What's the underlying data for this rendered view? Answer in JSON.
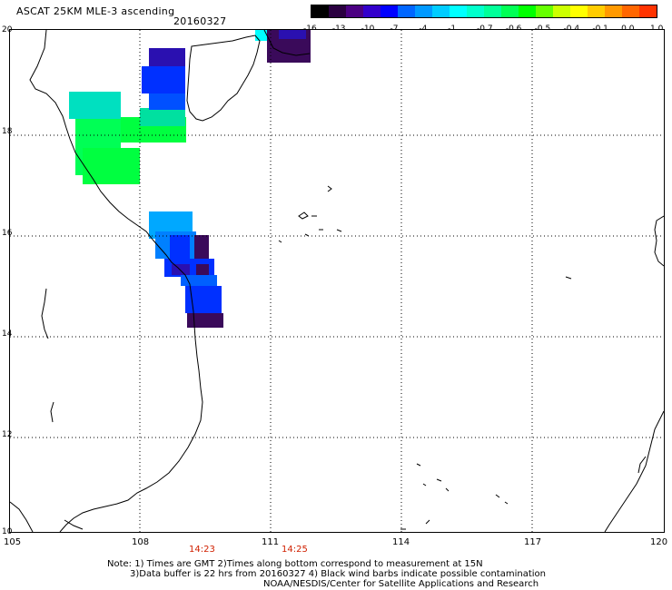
{
  "header": {
    "title": "ASCAT 25KM MLE-3 ascending",
    "date": "20160327"
  },
  "colorbar": {
    "labels": [
      "-16",
      "-13",
      "-10",
      "-7",
      "-4",
      "-1",
      "-0.7",
      "-0.6",
      "-0.5",
      "-0.4",
      "-0.1",
      "0.0",
      "1.0"
    ],
    "colors": [
      "#000000",
      "#2a0040",
      "#4b0082",
      "#3300cc",
      "#0000ff",
      "#0066ff",
      "#0099ff",
      "#00ccff",
      "#00ffff",
      "#00ffcc",
      "#00ff99",
      "#00ff55",
      "#00ff00",
      "#66ff00",
      "#ccff00",
      "#ffff00",
      "#ffcc00",
      "#ff9900",
      "#ff6600",
      "#ff3300"
    ]
  },
  "axes": {
    "lat_labels": [
      "20",
      "18",
      "16",
      "14",
      "12",
      "10"
    ],
    "lon_labels": [
      "105",
      "108",
      "111",
      "114",
      "117",
      "120"
    ]
  },
  "swath_times": [
    "14:23",
    "14:25"
  ],
  "notes": [
    "Note: 1) Times are GMT 2)Times along bottom correspond to measurement at 15N",
    "3)Data buffer is 22 hrs from 20160327 4) Black wind barbs indicate possible contamination",
    "NOAA/NESDIS/Center for Satellite Applications and Research"
  ],
  "data_cells_colors": {
    "green": "#00ff40",
    "aqua": "#00e0c0",
    "sky": "#00a8ff",
    "blue": "#0030ff",
    "indigo": "#2a10b0",
    "deep": "#3a0a5a",
    "cyan": "#00ffff"
  }
}
